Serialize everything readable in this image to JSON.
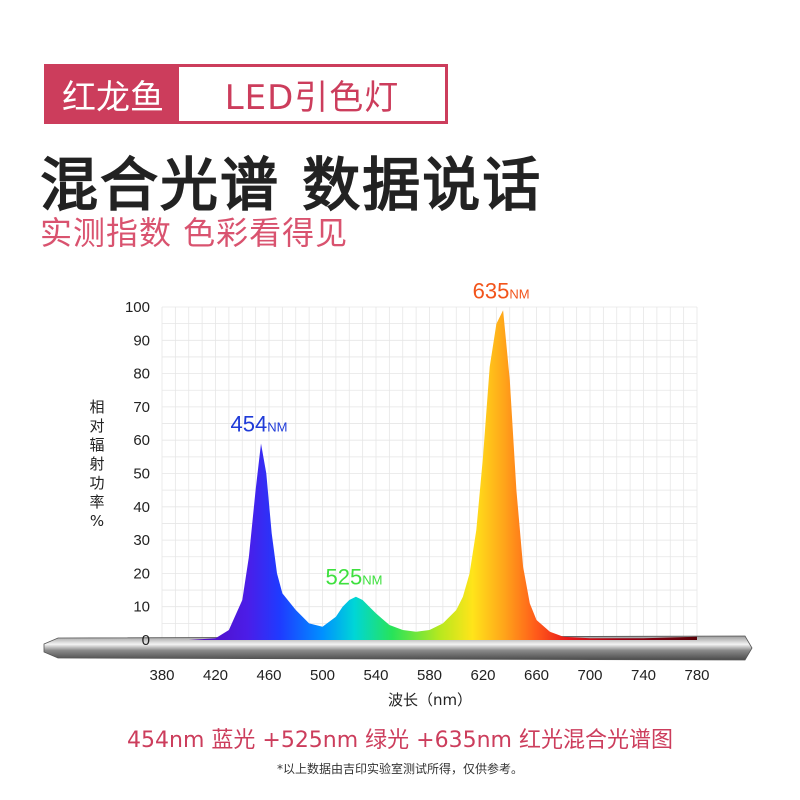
{
  "banner": {
    "left": "红龙鱼",
    "right": "LED引色灯"
  },
  "headline": "混合光谱 数据说话",
  "subline": "实测指数 色彩看得见",
  "caption": "454nm 蓝光 +525nm 绿光 +635nm 红光混合光谱图",
  "note": "*以上数据由吉印实验室测试所得，仅供参考。",
  "colors": {
    "accent": "#cc3d5c",
    "blue_peak": "#1f3bd8",
    "green_peak": "#3ee03e",
    "red_peak": "#f2541b"
  },
  "chart_data": {
    "type": "area",
    "ylabel_chars": [
      "相",
      "对",
      "辐",
      "射",
      "功",
      "率",
      "%"
    ],
    "xlabel": "波长（nm）",
    "x_ticks": [
      380,
      420,
      460,
      500,
      540,
      580,
      620,
      660,
      700,
      740,
      780
    ],
    "y_ticks": [
      0,
      10,
      20,
      30,
      40,
      50,
      60,
      70,
      80,
      90,
      100
    ],
    "xlim": [
      380,
      780
    ],
    "ylim": [
      0,
      100
    ],
    "grid": true,
    "series": [
      {
        "x": [
          380,
          400,
          420,
          430,
          440,
          445,
          450,
          454,
          458,
          462,
          466,
          470,
          480,
          490,
          500,
          510,
          515,
          520,
          525,
          530,
          535,
          540,
          550,
          560,
          570,
          580,
          590,
          600,
          605,
          610,
          615,
          620,
          625,
          630,
          635,
          640,
          645,
          650,
          655,
          660,
          670,
          680,
          700,
          740,
          780
        ],
        "y": [
          0,
          0,
          0.5,
          3,
          12,
          25,
          45,
          59,
          50,
          32,
          20,
          14,
          9,
          5,
          4,
          7,
          10,
          12,
          13,
          12,
          10,
          8,
          4.5,
          3,
          2.5,
          3,
          5,
          9,
          13,
          20,
          33,
          55,
          82,
          95,
          99,
          78,
          45,
          22,
          11,
          6,
          2.5,
          1,
          0.5,
          0.5,
          1
        ]
      }
    ],
    "peak_labels": [
      {
        "value": "454",
        "unit": "NM",
        "x": 454,
        "y": 59,
        "color": "#1f3bd8"
      },
      {
        "value": "525",
        "unit": "NM",
        "x": 525,
        "y": 13,
        "color": "#3ee03e"
      },
      {
        "value": "635",
        "unit": "NM",
        "x": 635,
        "y": 99,
        "color": "#f2541b"
      }
    ]
  }
}
